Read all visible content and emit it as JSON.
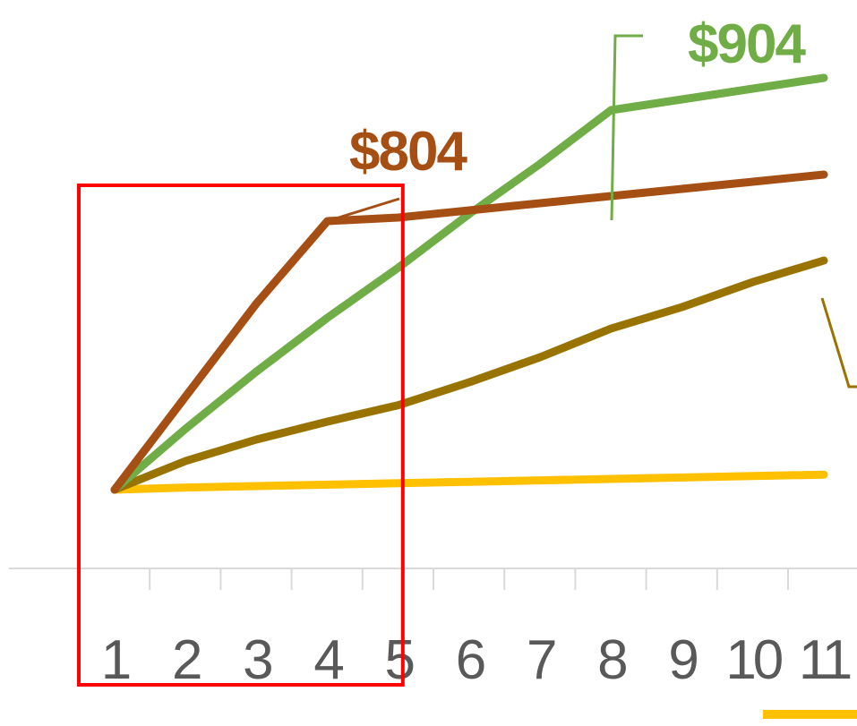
{
  "chart_data": {
    "type": "line",
    "categories": [
      "1",
      "2",
      "3",
      "4",
      "5",
      "6",
      "7",
      "8",
      "9",
      "10",
      "11"
    ],
    "title": "",
    "xlabel": "",
    "ylabel": "",
    "grid": false,
    "series": [
      {
        "key": "orange",
        "color": "#FFC000",
        "values": [
          0,
          3,
          5,
          7,
          9,
          11,
          13,
          15,
          17,
          19,
          21
        ]
      },
      {
        "key": "gold",
        "color": "#997300",
        "values": [
          0,
          40,
          70,
          95,
          118,
          150,
          185,
          225,
          255,
          290,
          320
        ]
      },
      {
        "key": "green",
        "color": "#70AD47",
        "values": [
          0,
          85,
          165,
          240,
          310,
          385,
          455,
          530,
          545,
          560,
          575
        ]
      },
      {
        "key": "brown",
        "color": "#A64F14",
        "values": [
          0,
          130,
          260,
          375,
          380,
          390,
          400,
          410,
          420,
          430,
          440
        ]
      }
    ],
    "annotations": [
      {
        "series": "brown",
        "text": "$804",
        "color": "#A64F14"
      },
      {
        "series": "green",
        "text": "$904",
        "color": "#70AD47"
      }
    ],
    "highlight": {
      "from_category": "1",
      "to_category": "5",
      "color": "#FF0000"
    },
    "legend_swatch_color": "#FFC000"
  }
}
